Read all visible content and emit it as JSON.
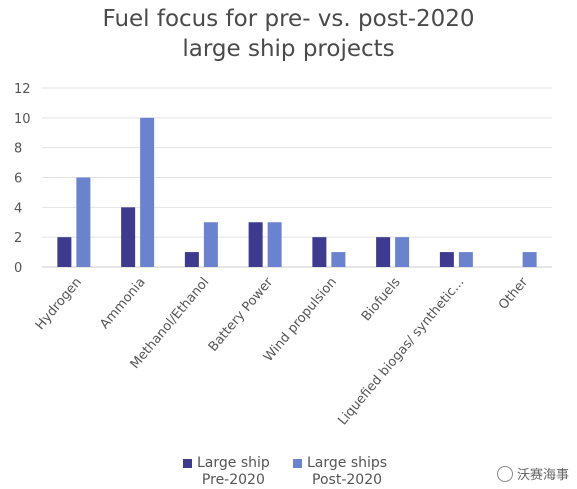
{
  "colors": {
    "pre": "#3e3a8f",
    "post": "#6b82cf",
    "grid": "#e3e3e3",
    "text": "#555555"
  },
  "watermark": {
    "text": "沃赛海事",
    "icon": "wechat-icon"
  },
  "chart_data": {
    "type": "bar",
    "title": [
      "Fuel focus for pre- vs. post-2020",
      "large ship projects"
    ],
    "categories": [
      "Hydrogen",
      "Ammonia",
      "Methanol/Ethanol",
      "Battery Power",
      "Wind propulsion",
      "Biofuels",
      "Liquefied biogas/ synthetic...",
      "Other"
    ],
    "series": [
      {
        "name": "Large ship Pre-2020",
        "values": [
          2,
          4,
          1,
          3,
          2,
          2,
          1,
          0
        ]
      },
      {
        "name": "Large ships Post-2020",
        "values": [
          6,
          10,
          3,
          3,
          1,
          2,
          1,
          1
        ]
      }
    ],
    "yticks": [
      "0",
      "2",
      "4",
      "6",
      "8",
      "10",
      "12"
    ],
    "ylim": [
      0,
      12
    ],
    "grid": true,
    "legend": "bottom",
    "legend_lines": [
      [
        "Large ship",
        "Pre-2020"
      ],
      [
        "Large ships",
        "Post-2020"
      ]
    ]
  }
}
